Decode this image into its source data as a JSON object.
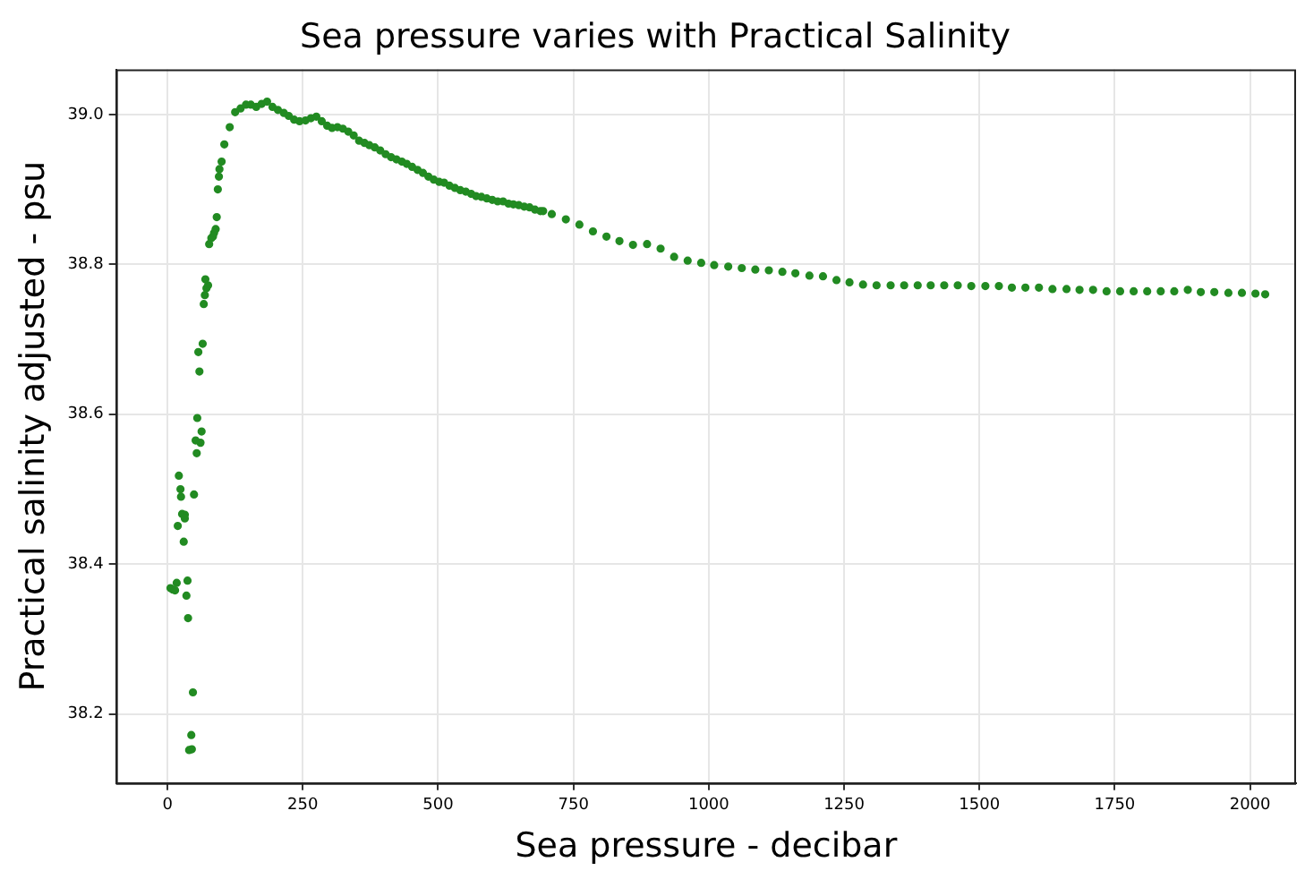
{
  "chart_data": {
    "type": "scatter",
    "title": "Sea pressure varies with Practical Salinity",
    "xlabel": "Sea pressure - decibar",
    "ylabel": "Practical salinity adjusted - psu",
    "x": [
      5.5,
      10,
      14,
      17,
      37,
      35,
      38,
      47,
      44,
      40,
      45,
      30,
      19,
      32,
      27,
      32,
      49,
      25,
      24,
      21,
      54,
      61,
      52,
      63,
      55,
      59,
      57,
      65,
      67,
      69,
      72,
      75,
      70,
      77,
      81,
      84,
      86,
      89,
      91,
      93,
      95,
      96,
      100,
      105,
      115,
      125,
      135,
      145,
      154,
      164,
      174,
      184,
      194,
      204,
      215,
      224,
      234,
      244,
      255,
      265,
      275,
      285,
      295,
      304,
      314,
      324,
      334,
      344,
      354,
      364,
      373,
      383,
      393,
      403,
      413,
      423,
      433,
      442,
      452,
      462,
      472,
      482,
      492,
      502,
      511,
      521,
      531,
      541,
      551,
      561,
      570,
      580,
      590,
      600,
      610,
      620,
      630,
      639,
      649,
      659,
      669,
      679,
      689,
      694,
      710,
      736,
      761,
      786,
      811,
      835,
      860,
      886,
      911,
      936,
      961,
      986,
      1010,
      1036,
      1061,
      1086,
      1111,
      1136,
      1160,
      1186,
      1211,
      1236,
      1260,
      1285,
      1310,
      1336,
      1361,
      1386,
      1410,
      1435,
      1460,
      1485,
      1511,
      1536,
      1560,
      1585,
      1610,
      1635,
      1661,
      1685,
      1710,
      1735,
      1760,
      1785,
      1810,
      1835,
      1860,
      1885,
      1909,
      1934,
      1960,
      1985,
      2010,
      2028
    ],
    "series": [
      {
        "color": "#228b22",
        "values": [
          38.368,
          38.366,
          38.365,
          38.375,
          38.378,
          38.358,
          38.328,
          38.229,
          38.172,
          38.152,
          38.153,
          38.43,
          38.451,
          38.466,
          38.467,
          38.461,
          38.493,
          38.49,
          38.5,
          38.518,
          38.548,
          38.562,
          38.565,
          38.577,
          38.595,
          38.657,
          38.683,
          38.694,
          38.747,
          38.759,
          38.768,
          38.772,
          38.78,
          38.827,
          38.835,
          38.837,
          38.842,
          38.847,
          38.863,
          38.9,
          38.917,
          38.927,
          38.937,
          38.96,
          38.983,
          39.003,
          39.008,
          39.013,
          39.013,
          39.01,
          39.014,
          39.017,
          39.01,
          39.006,
          39.002,
          38.998,
          38.993,
          38.991,
          38.992,
          38.995,
          38.997,
          38.991,
          38.985,
          38.982,
          38.983,
          38.981,
          38.977,
          38.972,
          38.965,
          38.962,
          38.959,
          38.956,
          38.952,
          38.947,
          38.943,
          38.94,
          38.937,
          38.934,
          38.93,
          38.926,
          38.922,
          38.917,
          38.913,
          38.91,
          38.909,
          38.905,
          38.902,
          38.899,
          38.897,
          38.894,
          38.891,
          38.89,
          38.888,
          38.886,
          38.884,
          38.884,
          38.881,
          38.88,
          38.879,
          38.877,
          38.876,
          38.873,
          38.871,
          38.871,
          38.867,
          38.86,
          38.853,
          38.844,
          38.837,
          38.831,
          38.826,
          38.827,
          38.821,
          38.81,
          38.805,
          38.802,
          38.799,
          38.797,
          38.795,
          38.793,
          38.792,
          38.79,
          38.788,
          38.785,
          38.784,
          38.779,
          38.776,
          38.773,
          38.772,
          38.772,
          38.772,
          38.772,
          38.772,
          38.772,
          38.772,
          38.771,
          38.771,
          38.771,
          38.769,
          38.769,
          38.769,
          38.767,
          38.767,
          38.766,
          38.766,
          38.764,
          38.764,
          38.764,
          38.764,
          38.764,
          38.764,
          38.766,
          38.763,
          38.763,
          38.762,
          38.762,
          38.761,
          38.76
        ]
      }
    ],
    "xlim": [
      -95,
      2085
    ],
    "ylim": [
      38.108,
      39.06
    ],
    "xticks": [
      0,
      250,
      500,
      750,
      1000,
      1250,
      1500,
      1750,
      2000
    ],
    "yticks": [
      {
        "value": 38.2,
        "label": "38.2"
      },
      {
        "value": 38.4,
        "label": "38.4"
      },
      {
        "value": 38.6,
        "label": "38.6"
      },
      {
        "value": 38.8,
        "label": "38.8"
      },
      {
        "value": 39,
        "label": "39.0"
      }
    ],
    "grid": true,
    "marker": "circle"
  }
}
